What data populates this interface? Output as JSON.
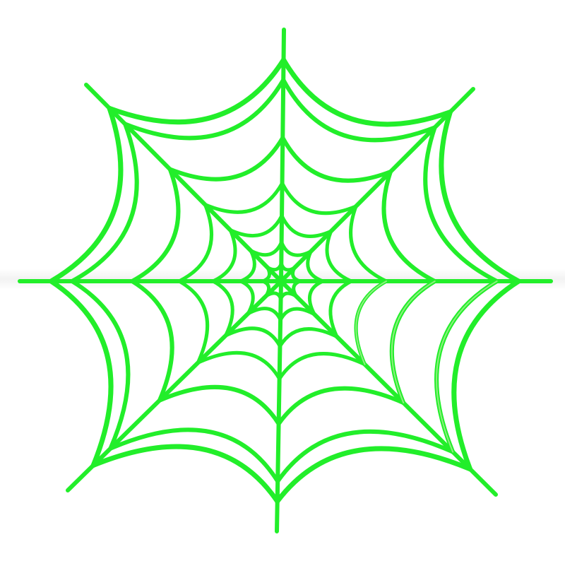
{
  "illustration": {
    "subject": "spider-web",
    "colors": {
      "stroke": "#22ee2a",
      "highlight": "#8cf07e",
      "background": "#ffffff"
    }
  }
}
